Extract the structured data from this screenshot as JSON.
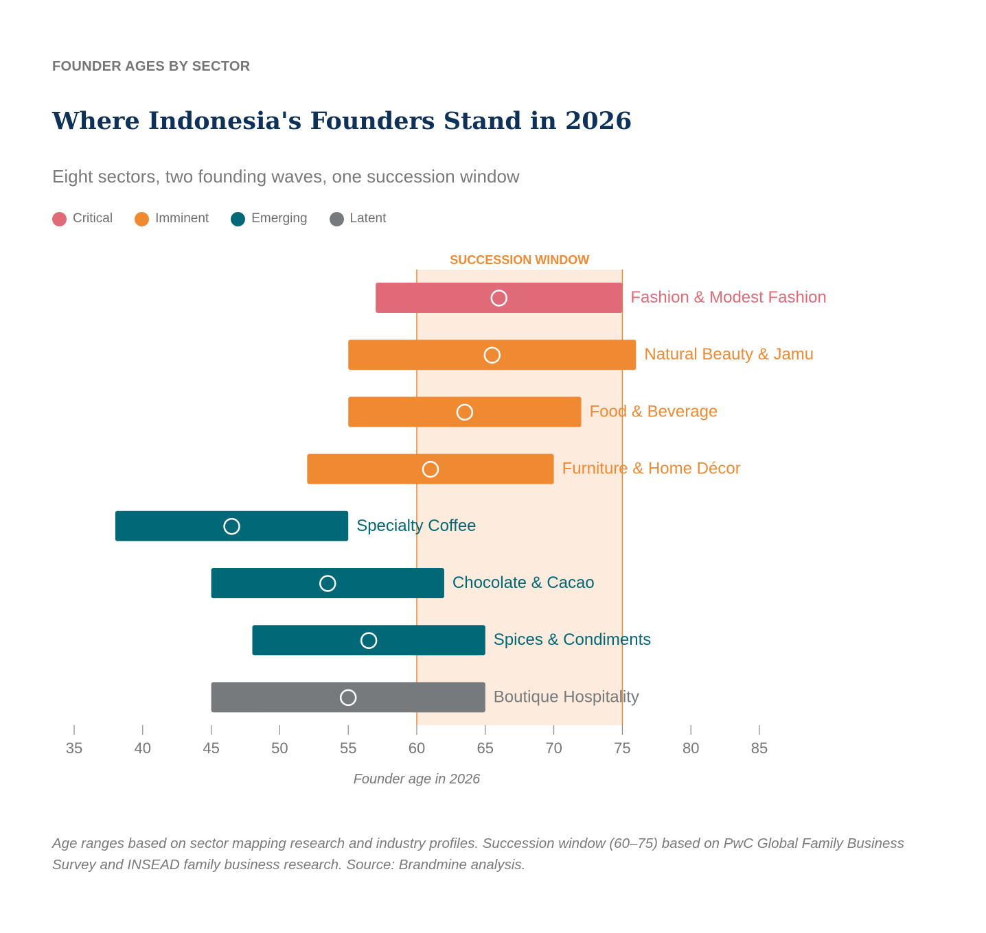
{
  "eyebrow": "FOUNDER AGES BY SECTOR",
  "title": "Where Indonesia's Founders Stand in 2026",
  "subtitle": "Eight sectors, two founding waves, one succession window",
  "legend": [
    {
      "label": "Critical",
      "color": "#e06a78"
    },
    {
      "label": "Imminent",
      "color": "#ef8a33"
    },
    {
      "label": "Emerging",
      "color": "#006877"
    },
    {
      "label": "Latent",
      "color": "#767a7d"
    }
  ],
  "chart_data": {
    "type": "bar",
    "orientation": "horizontal-range",
    "xlabel": "Founder age in 2026",
    "xlim": [
      35,
      85
    ],
    "xticks": [
      "35",
      "40",
      "45",
      "50",
      "55",
      "60",
      "65",
      "70",
      "75",
      "80",
      "85"
    ],
    "grid": false,
    "window": {
      "label": "SUCCESSION WINDOW",
      "start": 60,
      "end": 75,
      "color": "#ef8a33",
      "fill": "#fdebdd"
    },
    "series": [
      {
        "label": "Fashion & Modest Fashion",
        "status": "Critical",
        "min": 57,
        "max": 75,
        "median": 66,
        "color": "#e06a78"
      },
      {
        "label": "Natural Beauty & Jamu",
        "status": "Imminent",
        "min": 55,
        "max": 76,
        "median": 65.5,
        "color": "#ef8a33"
      },
      {
        "label": "Food & Beverage",
        "status": "Imminent",
        "min": 55,
        "max": 72,
        "median": 63.5,
        "color": "#ef8a33"
      },
      {
        "label": "Furniture & Home Décor",
        "status": "Imminent",
        "min": 52,
        "max": 70,
        "median": 61,
        "color": "#ef8a33"
      },
      {
        "label": "Specialty Coffee",
        "status": "Emerging",
        "min": 38,
        "max": 55,
        "median": 46.5,
        "color": "#006877"
      },
      {
        "label": "Chocolate & Cacao",
        "status": "Emerging",
        "min": 45,
        "max": 62,
        "median": 53.5,
        "color": "#006877"
      },
      {
        "label": "Spices & Condiments",
        "status": "Emerging",
        "min": 48,
        "max": 65,
        "median": 56.5,
        "color": "#006877"
      },
      {
        "label": "Boutique Hospitality",
        "status": "Latent",
        "min": 45,
        "max": 65,
        "median": 55,
        "color": "#767a7d"
      }
    ]
  },
  "footnote": "Age ranges based on sector mapping research and industry profiles. Succession window (60–75) based on PwC Global Family Business Survey and INSEAD family business research. Source: Brandmine analysis."
}
